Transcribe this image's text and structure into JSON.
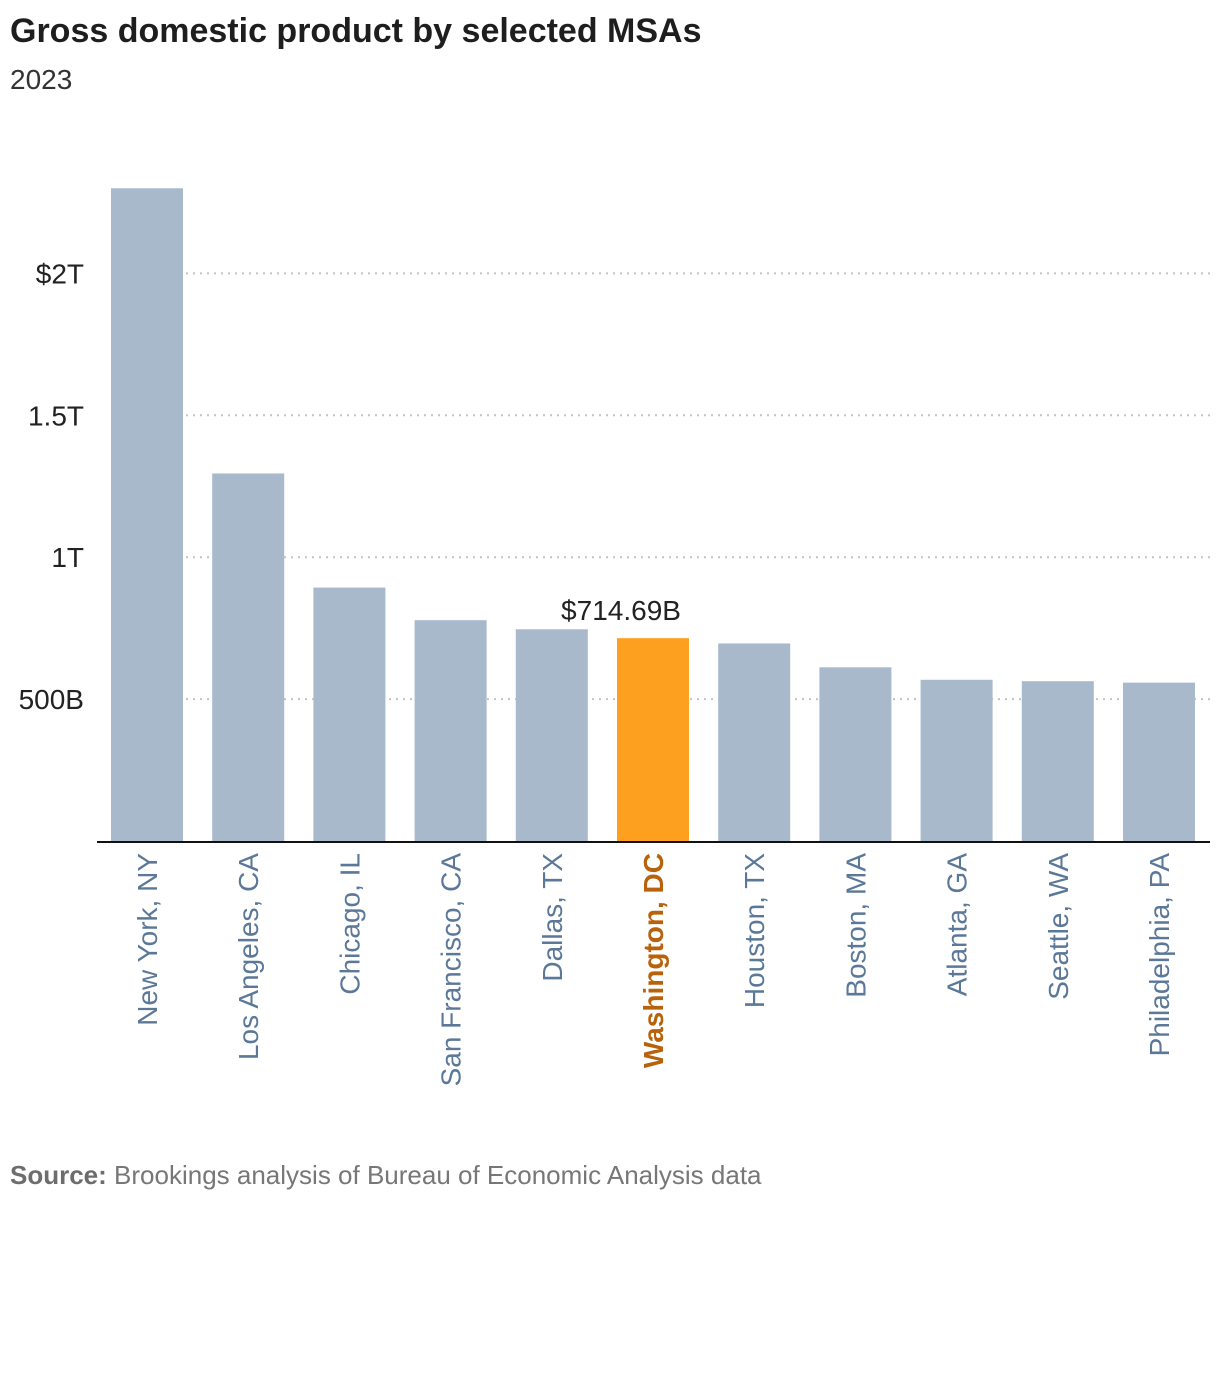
{
  "title": "Gross domestic product by selected MSAs",
  "subtitle": "2023",
  "source_label": "Source:",
  "source_text": "Brookings analysis of Bureau of Economic Analysis data",
  "colors": {
    "bar": "#a7b9cb",
    "highlight": "#fd9f1f",
    "highlight_label": "#b8620b",
    "category_label": "#5b7898"
  },
  "chart_data": {
    "type": "bar",
    "categories": [
      "New York, NY",
      "Los Angeles, CA",
      "Chicago, IL",
      "San Francisco, CA",
      "Dallas, TX",
      "Washington, DC",
      "Houston, TX",
      "Boston, MA",
      "Atlanta, GA",
      "Seattle, WA",
      "Philadelphia, PA"
    ],
    "values": [
      2300,
      1295,
      893,
      778,
      746,
      714.69,
      696,
      612,
      568,
      563,
      558
    ],
    "unit": "billions USD",
    "highlight_index": 5,
    "highlight_label": "$714.69B",
    "y_ticks": [
      {
        "value": 500,
        "label": "500B"
      },
      {
        "value": 1000,
        "label": "1T"
      },
      {
        "value": 1500,
        "label": "1.5T"
      },
      {
        "value": 2000,
        "label": "$2T"
      }
    ],
    "ylim": [
      0,
      2300
    ],
    "grid": true
  }
}
